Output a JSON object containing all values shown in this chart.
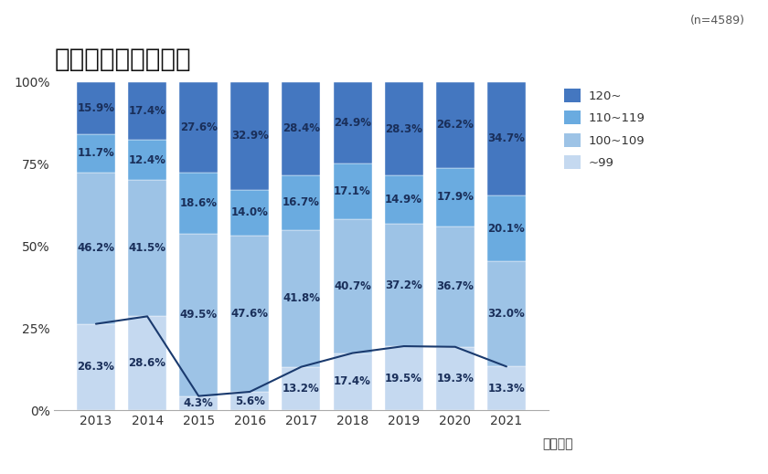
{
  "title": "年間休日割合の推移",
  "subtitle": "(n=4589)",
  "years": [
    "2013",
    "2014",
    "2015",
    "2016",
    "2017",
    "2018",
    "2019",
    "2020",
    "2021"
  ],
  "xlabel_suffix": "（年度）",
  "categories": [
    "~99",
    "100~109",
    "110~119",
    "120~"
  ],
  "colors": [
    "#c5d9f0",
    "#9dc3e6",
    "#6aabe0",
    "#4477c0"
  ],
  "values": {
    "~99": [
      26.3,
      28.6,
      4.3,
      5.6,
      13.2,
      17.4,
      19.5,
      19.3,
      13.3
    ],
    "100~109": [
      46.2,
      41.5,
      49.5,
      47.6,
      41.8,
      40.7,
      37.2,
      36.7,
      32.0
    ],
    "110~119": [
      11.7,
      12.4,
      18.6,
      14.0,
      16.7,
      17.1,
      14.9,
      17.9,
      20.1
    ],
    "120~": [
      15.9,
      17.4,
      27.6,
      32.9,
      28.4,
      24.9,
      28.3,
      26.2,
      34.7
    ]
  },
  "line_color": "#1a3a6e",
  "bar_width": 0.75,
  "bg_color": "#ffffff",
  "yticks": [
    0,
    25,
    50,
    75,
    100
  ],
  "ytick_labels": [
    "0%",
    "25%",
    "50%",
    "75%",
    "100%"
  ],
  "legend_labels": [
    "120~",
    "110~119",
    "100~109",
    "~99"
  ],
  "legend_colors": [
    "#4477c0",
    "#6aabe0",
    "#9dc3e6",
    "#c5d9f0"
  ],
  "text_color": "#1a2f5a",
  "label_fontsize": 8.5,
  "title_fontsize": 20,
  "axis_fontsize": 10
}
